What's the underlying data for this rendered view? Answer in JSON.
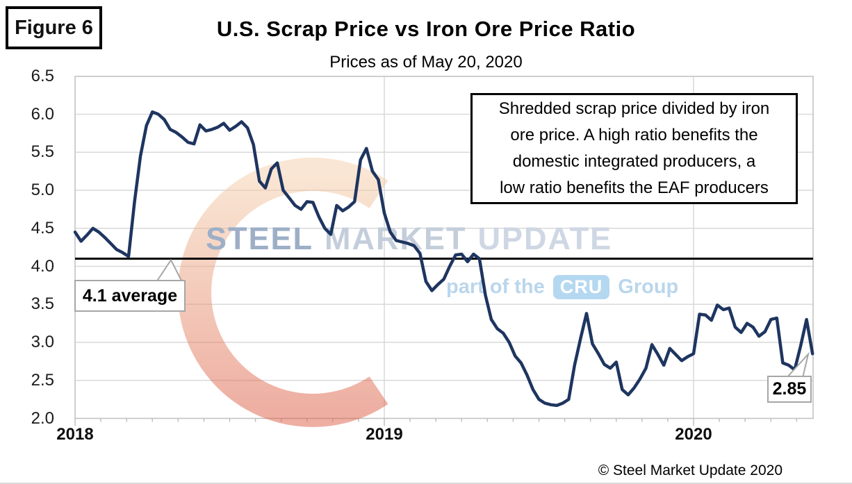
{
  "figure_label": "Figure 6",
  "title": "U.S. Scrap Price vs Iron Ore Price Ratio",
  "subtitle": "Prices as of May 20, 2020",
  "info_box": {
    "lines": [
      "Shredded scrap price divided by iron",
      "ore price. A high ratio benefits the",
      "domestic integrated producers, a",
      "low ratio benefits the EAF producers"
    ]
  },
  "annotations": {
    "average_label": "4.1 average",
    "last_value_label": "2.85"
  },
  "watermark": {
    "word1": "STEEL",
    "word2": "MARKET",
    "word3": "UPDATE",
    "tagline_prefix": "part of the",
    "tagline_box": "CRU",
    "tagline_suffix": "Group"
  },
  "footer": {
    "copyright": "© Steel Market Update 2020"
  },
  "colors": {
    "line": "#1e3560",
    "average_line": "#000000",
    "gridline": "#d9d9d9",
    "axis_border": "#bfbfbf",
    "callout_border": "#a6a6a6",
    "watermark_salmon": "#f4cda8",
    "watermark_red": "#dc5f45",
    "watermark_blue": "#b9d6ec"
  },
  "chart_data": {
    "type": "line",
    "title": "U.S. Scrap Price vs Iron Ore Price Ratio",
    "subtitle": "Prices as of May 20, 2020",
    "x_unit": "weekly",
    "x_start": "2018-01",
    "x_end": "2020-05-20",
    "x_ticks": [
      "2018",
      "2019",
      "2020"
    ],
    "y_ticks": [
      "6.5",
      "6.0",
      "5.5",
      "5.0",
      "4.5",
      "4.0",
      "3.5",
      "3.0",
      "2.5",
      "2.0"
    ],
    "ylim": [
      2.0,
      6.5
    ],
    "grid": true,
    "average": 4.1,
    "last_value": 2.85,
    "values": [
      4.45,
      4.33,
      4.41,
      4.5,
      4.45,
      4.38,
      4.3,
      4.22,
      4.18,
      4.13,
      4.85,
      5.45,
      5.85,
      6.03,
      6.0,
      5.93,
      5.8,
      5.76,
      5.7,
      5.63,
      5.61,
      5.86,
      5.78,
      5.8,
      5.83,
      5.88,
      5.79,
      5.84,
      5.9,
      5.82,
      5.6,
      5.12,
      5.03,
      5.28,
      5.36,
      5.0,
      4.9,
      4.8,
      4.75,
      4.85,
      4.84,
      4.65,
      4.5,
      4.42,
      4.8,
      4.73,
      4.78,
      4.85,
      5.4,
      5.55,
      5.25,
      5.14,
      4.7,
      4.45,
      4.34,
      4.32,
      4.3,
      4.27,
      4.17,
      3.8,
      3.68,
      3.76,
      3.83,
      4.0,
      4.15,
      4.16,
      4.06,
      4.16,
      4.1,
      3.62,
      3.3,
      3.18,
      3.12,
      3.0,
      2.82,
      2.73,
      2.57,
      2.38,
      2.25,
      2.2,
      2.18,
      2.17,
      2.2,
      2.25,
      2.7,
      3.05,
      3.38,
      2.98,
      2.85,
      2.71,
      2.66,
      2.74,
      2.38,
      2.31,
      2.4,
      2.52,
      2.66,
      2.97,
      2.84,
      2.7,
      2.92,
      2.84,
      2.76,
      2.81,
      2.85,
      3.37,
      3.36,
      3.29,
      3.49,
      3.43,
      3.45,
      3.2,
      3.13,
      3.25,
      3.2,
      3.08,
      3.14,
      3.3,
      3.32,
      2.73,
      2.7,
      2.64,
      2.95,
      3.3,
      2.85
    ]
  }
}
